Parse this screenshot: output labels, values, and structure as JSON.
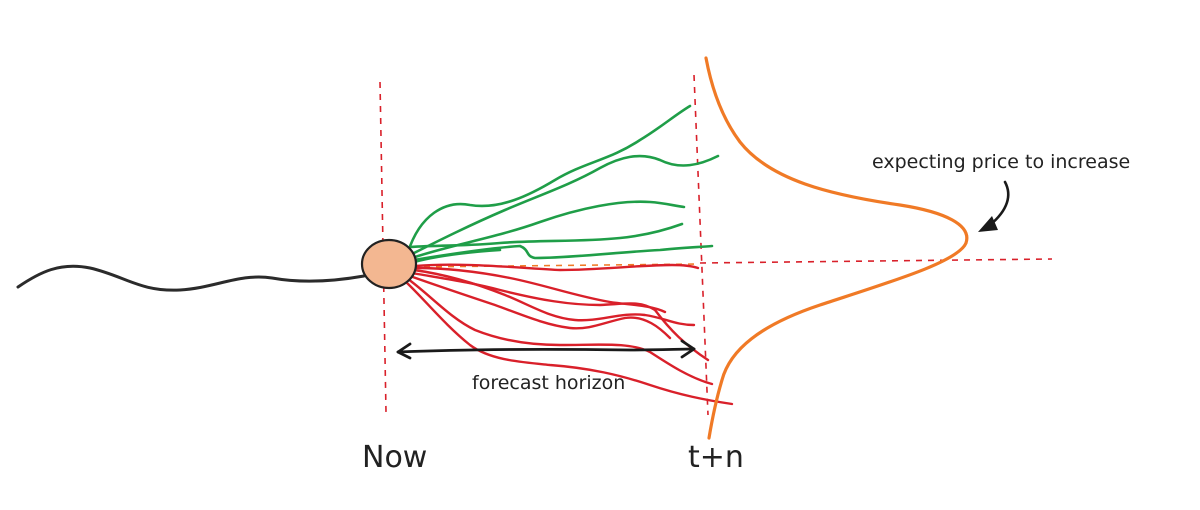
{
  "labels": {
    "now": "Now",
    "end": "t+n",
    "horizon": "forecast horizon",
    "annotation": "expecting price to increase"
  },
  "colors": {
    "history": "#2b2b2b",
    "up": "#1f9e48",
    "down": "#d9202a",
    "distribution": "#f07a26",
    "guides": "#d9202a",
    "origin_fill": "#f3b791",
    "arrow": "#1a1a1a"
  },
  "counts": {
    "up_paths": 6,
    "down_paths": 7
  }
}
